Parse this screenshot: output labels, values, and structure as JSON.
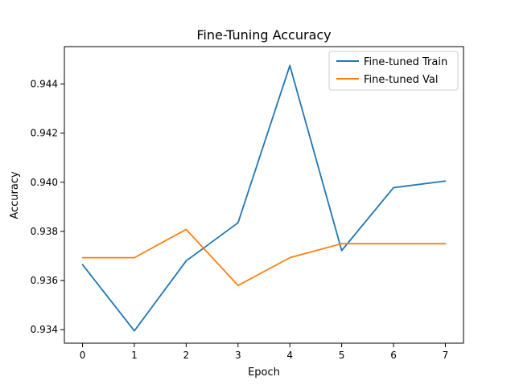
{
  "chart_data": {
    "type": "line",
    "title": "Fine-Tuning Accuracy",
    "xlabel": "Epoch",
    "ylabel": "Accuracy",
    "x": [
      0,
      1,
      2,
      3,
      4,
      5,
      6,
      7
    ],
    "xlim": [
      -0.35,
      7.35
    ],
    "ylim": [
      0.93345,
      0.94552
    ],
    "xticks": [
      0,
      1,
      2,
      3,
      4,
      5,
      6,
      7
    ],
    "yticks": [
      0.934,
      0.936,
      0.938,
      0.94,
      0.942,
      0.944
    ],
    "ytick_labels": [
      "0.934",
      "0.936",
      "0.938",
      "0.940",
      "0.942",
      "0.944"
    ],
    "grid": false,
    "legend_position": "top-right",
    "series": [
      {
        "name": "Fine-tuned Train",
        "color": "#1f77b4",
        "values": [
          0.93665,
          0.93395,
          0.9368,
          0.93835,
          0.94475,
          0.93722,
          0.93978,
          0.94005
        ]
      },
      {
        "name": "Fine-tuned Val",
        "color": "#ff7f0e",
        "values": [
          0.93693,
          0.93693,
          0.93808,
          0.9358,
          0.93693,
          0.9375,
          0.9375,
          0.9375
        ]
      }
    ]
  }
}
